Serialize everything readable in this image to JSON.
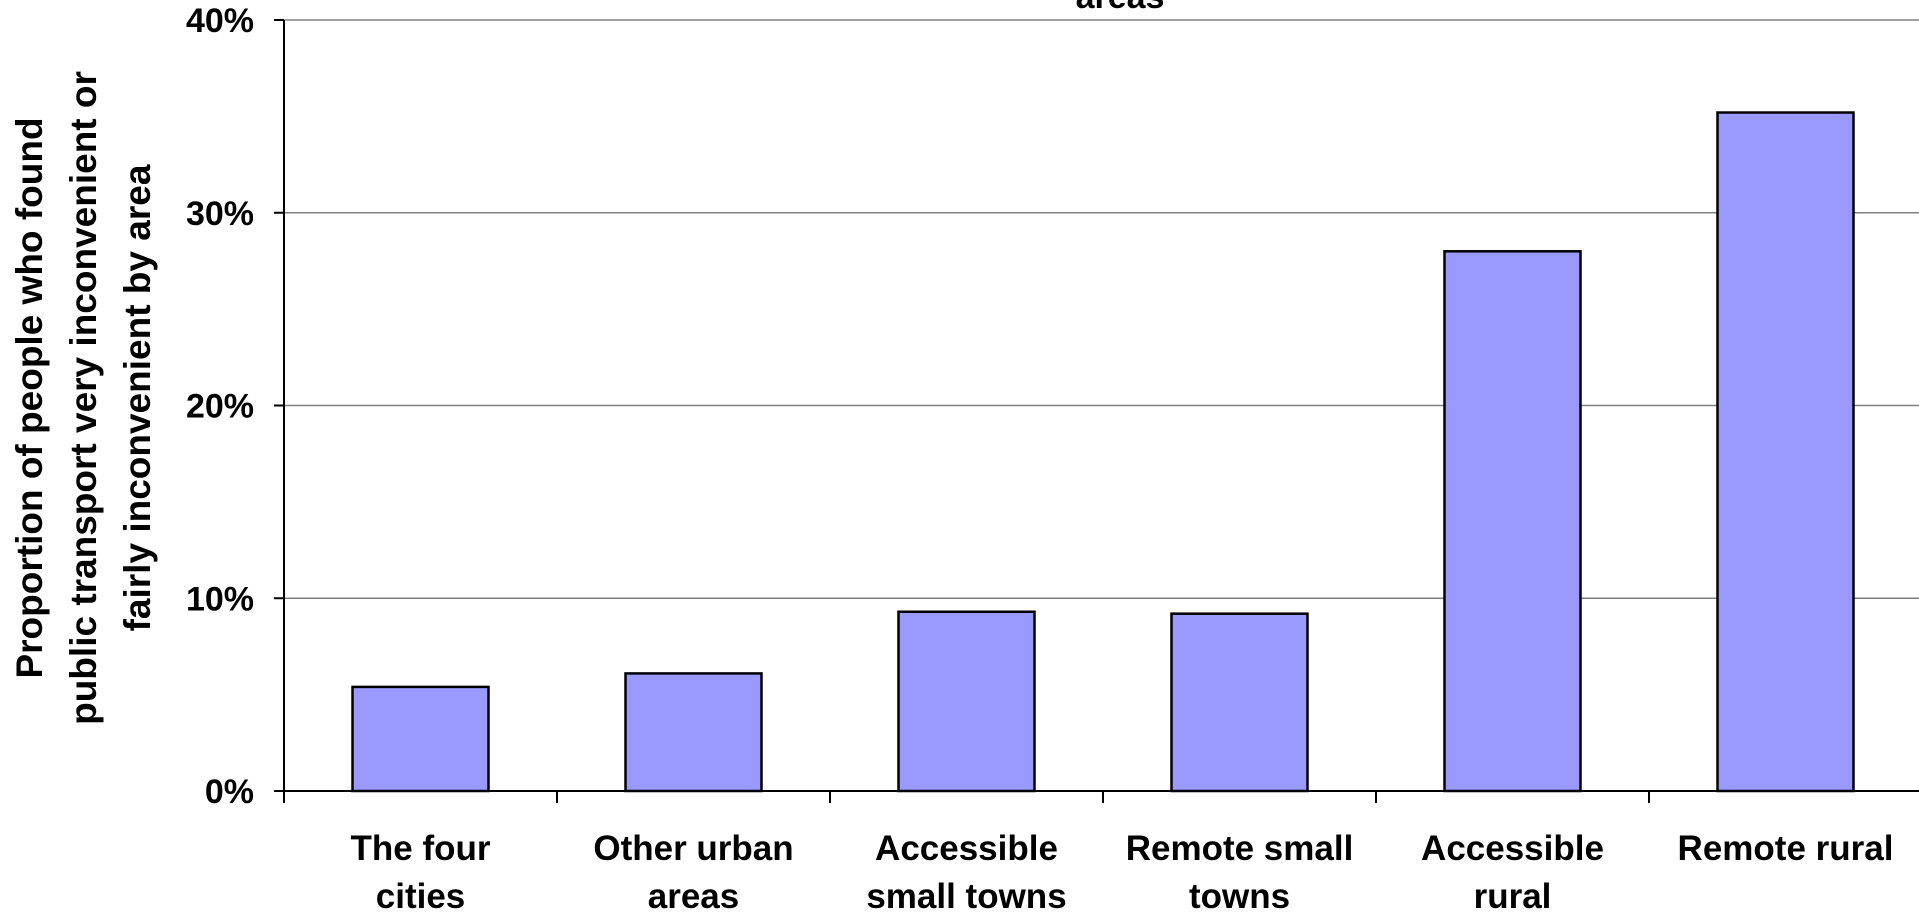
{
  "chart_data": {
    "type": "bar",
    "title": "areas",
    "ylabel_lines": [
      "Proportion of people who found",
      "public transport very inconvenient or",
      "fairly inconvenient by area"
    ],
    "xlabel": "",
    "categories": [
      [
        "The four",
        "cities"
      ],
      [
        "Other urban",
        "areas"
      ],
      [
        "Accessible",
        "small towns"
      ],
      [
        "Remote small",
        "towns"
      ],
      [
        "Accessible",
        "rural"
      ],
      [
        "Remote rural"
      ]
    ],
    "values": [
      5.4,
      6.1,
      9.3,
      9.2,
      28.0,
      35.2
    ],
    "ylim": [
      0,
      40
    ],
    "yticks": [
      0,
      10,
      20,
      30,
      40
    ],
    "ytick_labels": [
      "0%",
      "10%",
      "20%",
      "30%",
      "40%"
    ],
    "grid": true,
    "bar_color": "#9999ff",
    "bar_edge_color": "#000000",
    "grid_color": "#808080"
  }
}
